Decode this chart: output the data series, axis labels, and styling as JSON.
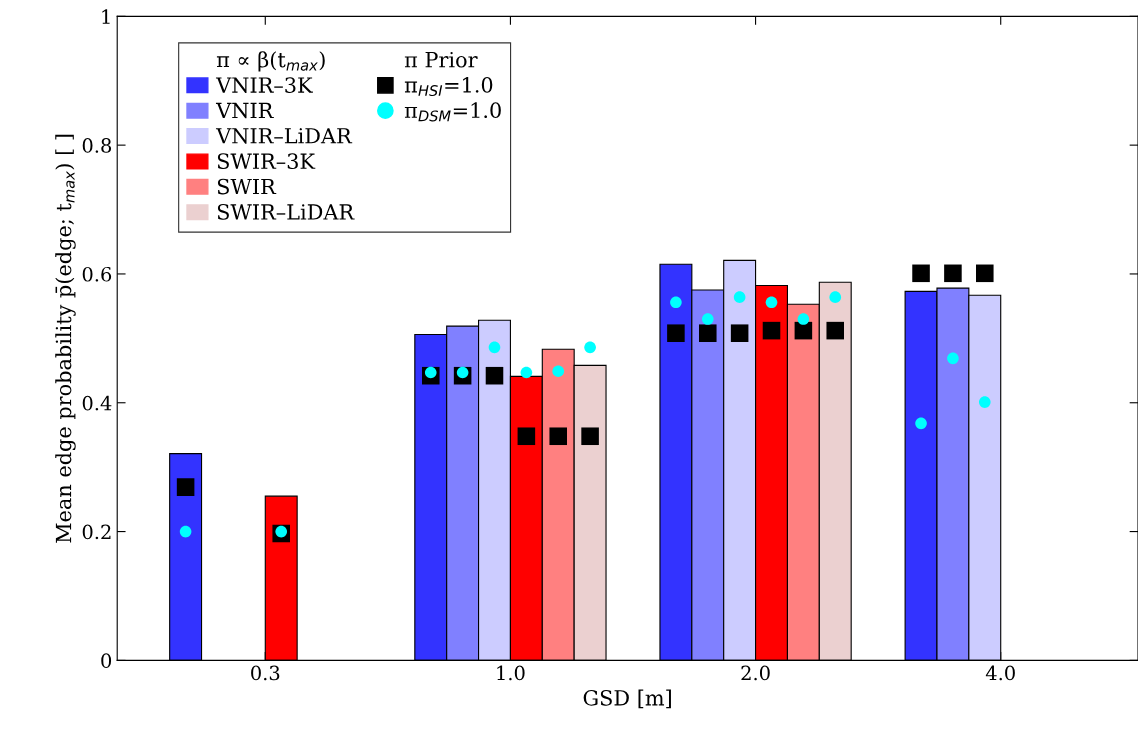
{
  "chart_data": {
    "type": "bar",
    "xlabel": "GSD [m]",
    "ylabel": "Mean edge probability p̄(edge; t$_{max}$) [ ]",
    "categories": [
      "0.3",
      "1.0",
      "2.0",
      "4.0"
    ],
    "legend_title": [
      "π ∝ β(t$_{max}$)",
      "π Prior"
    ],
    "series": [
      {
        "name": "VNIR–3K",
        "color": "#3333ff",
        "values": [
          0.321,
          0.506,
          0.615,
          0.573
        ]
      },
      {
        "name": "VNIR",
        "color": "#8080ff",
        "values": [
          null,
          0.519,
          0.575,
          0.578
        ]
      },
      {
        "name": "VNIR–LiDAR",
        "color": "#ccccff",
        "values": [
          null,
          0.528,
          0.621,
          0.567
        ]
      },
      {
        "name": "SWIR–3K",
        "color": "#ff0000",
        "values": [
          0.255,
          0.441,
          0.582,
          null
        ]
      },
      {
        "name": "SWIR",
        "color": "#ff8080",
        "values": [
          null,
          0.483,
          0.553,
          null
        ]
      },
      {
        "name": "SWIR–LiDAR",
        "color": "#ebd0d0",
        "values": [
          null,
          0.458,
          0.587,
          null
        ]
      },
      {
        "type": "scatter",
        "name": "π$_{HSI}$=1.0",
        "color": "#000000",
        "marker": "square",
        "x": [
          "0.3",
          "0.3",
          "0.3",
          "0.3",
          "0.3",
          "0.3",
          "1.0",
          "1.0",
          "1.0",
          "1.0",
          "1.0",
          "1.0",
          "2.0",
          "2.0",
          "2.0",
          "2.0",
          "2.0",
          "2.0",
          "4.0",
          "4.0",
          "4.0",
          "4.0",
          "4.0",
          "4.0"
        ],
        "values": [
          0.269,
          null,
          null,
          0.197,
          null,
          null,
          0.442,
          0.442,
          0.442,
          0.348,
          0.348,
          0.348,
          0.508,
          0.508,
          0.508,
          0.512,
          0.512,
          0.512,
          0.601,
          0.601,
          0.601,
          null,
          null,
          null
        ]
      },
      {
        "type": "scatter",
        "name": "π$_{DSM}$=1.0",
        "color": "#00ffff",
        "marker": "circle",
        "x": [
          "0.3",
          "0.3",
          "0.3",
          "0.3",
          "0.3",
          "0.3",
          "1.0",
          "1.0",
          "1.0",
          "1.0",
          "1.0",
          "1.0",
          "2.0",
          "2.0",
          "2.0",
          "2.0",
          "2.0",
          "2.0",
          "4.0",
          "4.0",
          "4.0",
          "4.0",
          "4.0",
          "4.0"
        ],
        "values": [
          0.2,
          null,
          null,
          0.2,
          null,
          null,
          0.447,
          0.447,
          0.486,
          0.447,
          0.449,
          0.486,
          0.556,
          0.53,
          0.564,
          0.556,
          0.53,
          0.564,
          0.368,
          0.469,
          0.401,
          null,
          null,
          null
        ]
      }
    ],
    "ylim": [
      0,
      1
    ],
    "yticks": [
      0,
      0.2,
      0.4,
      0.6,
      0.8,
      1
    ],
    "grid": false,
    "legend": "top left"
  }
}
